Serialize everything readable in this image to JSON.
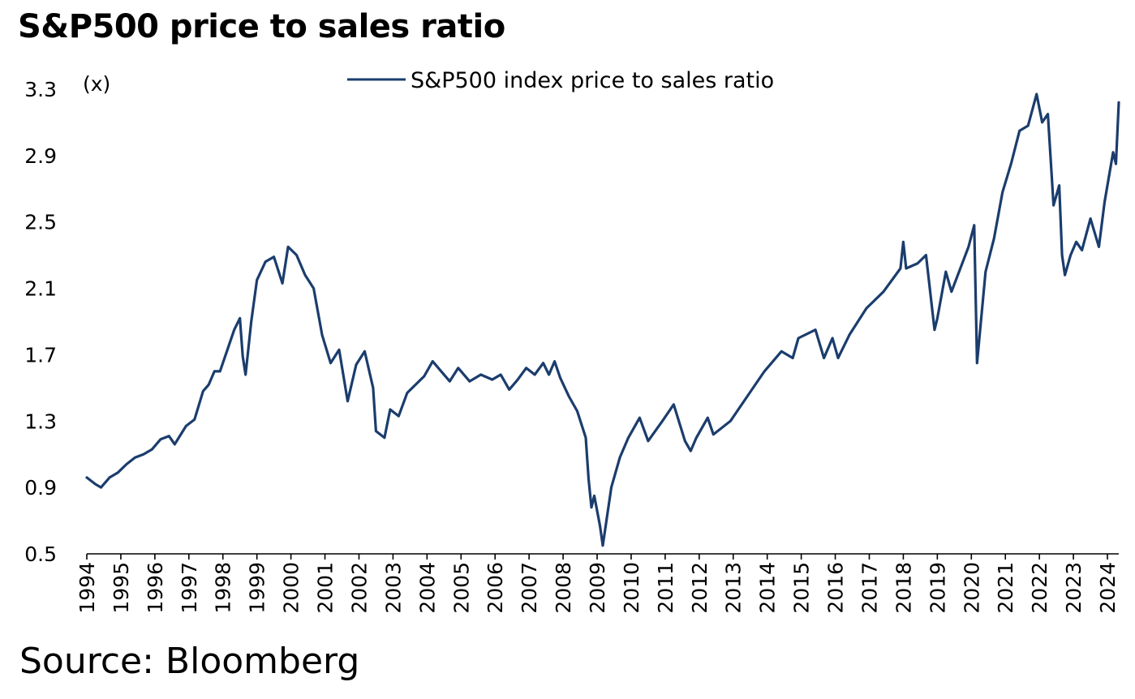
{
  "chart_data": {
    "type": "line",
    "title": "S&P500 price to sales ratio",
    "source": "Source: Bloomberg",
    "ylabel": "(x)",
    "xlabel": "",
    "ylim": [
      0.5,
      3.3
    ],
    "yticks": [
      "0.5",
      "0.9",
      "1.3",
      "1.7",
      "2.1",
      "2.5",
      "2.9",
      "3.3"
    ],
    "xlim": [
      "1994-01-01",
      "2024-05-01"
    ],
    "xticks": [
      "1994",
      "1995",
      "1996",
      "1997",
      "1998",
      "1999",
      "2000",
      "2001",
      "2002",
      "2003",
      "2004",
      "2005",
      "2006",
      "2007",
      "2008",
      "2009",
      "2010",
      "2011",
      "2012",
      "2013",
      "2014",
      "2015",
      "2016",
      "2017",
      "2018",
      "2019",
      "2020",
      "2021",
      "2022",
      "2023",
      "2024"
    ],
    "grid": false,
    "legend_position": "top-center",
    "line_color": "#1b3d6d",
    "series": [
      {
        "name": "S&P500 index price to sales ratio",
        "points": [
          [
            "1994-01",
            0.96
          ],
          [
            "1994-04",
            0.92
          ],
          [
            "1994-06",
            0.9
          ],
          [
            "1994-09",
            0.96
          ],
          [
            "1994-12",
            0.99
          ],
          [
            "1995-03",
            1.04
          ],
          [
            "1995-06",
            1.08
          ],
          [
            "1995-09",
            1.1
          ],
          [
            "1995-12",
            1.13
          ],
          [
            "1996-03",
            1.19
          ],
          [
            "1996-06",
            1.21
          ],
          [
            "1996-08",
            1.16
          ],
          [
            "1996-12",
            1.27
          ],
          [
            "1997-03",
            1.31
          ],
          [
            "1997-06",
            1.48
          ],
          [
            "1997-08",
            1.52
          ],
          [
            "1997-10",
            1.6
          ],
          [
            "1997-12",
            1.6
          ],
          [
            "1998-03",
            1.75
          ],
          [
            "1998-05",
            1.85
          ],
          [
            "1998-07",
            1.92
          ],
          [
            "1998-08",
            1.69
          ],
          [
            "1998-09",
            1.58
          ],
          [
            "1998-11",
            1.9
          ],
          [
            "1999-01",
            2.15
          ],
          [
            "1999-04",
            2.26
          ],
          [
            "1999-07",
            2.29
          ],
          [
            "1999-10",
            2.13
          ],
          [
            "1999-12",
            2.35
          ],
          [
            "2000-03",
            2.3
          ],
          [
            "2000-06",
            2.18
          ],
          [
            "2000-09",
            2.1
          ],
          [
            "2000-12",
            1.82
          ],
          [
            "2001-03",
            1.65
          ],
          [
            "2001-06",
            1.73
          ],
          [
            "2001-09",
            1.42
          ],
          [
            "2001-12",
            1.64
          ],
          [
            "2002-03",
            1.72
          ],
          [
            "2002-06",
            1.5
          ],
          [
            "2002-07",
            1.24
          ],
          [
            "2002-10",
            1.2
          ],
          [
            "2002-12",
            1.37
          ],
          [
            "2003-03",
            1.33
          ],
          [
            "2003-06",
            1.47
          ],
          [
            "2003-12",
            1.57
          ],
          [
            "2004-03",
            1.66
          ],
          [
            "2004-06",
            1.6
          ],
          [
            "2004-09",
            1.54
          ],
          [
            "2004-12",
            1.62
          ],
          [
            "2005-04",
            1.54
          ],
          [
            "2005-08",
            1.58
          ],
          [
            "2005-12",
            1.55
          ],
          [
            "2006-03",
            1.58
          ],
          [
            "2006-06",
            1.49
          ],
          [
            "2006-09",
            1.55
          ],
          [
            "2006-12",
            1.62
          ],
          [
            "2007-03",
            1.58
          ],
          [
            "2007-06",
            1.65
          ],
          [
            "2007-08",
            1.58
          ],
          [
            "2007-10",
            1.66
          ],
          [
            "2007-12",
            1.56
          ],
          [
            "2008-03",
            1.45
          ],
          [
            "2008-06",
            1.36
          ],
          [
            "2008-09",
            1.2
          ],
          [
            "2008-10",
            0.95
          ],
          [
            "2008-11",
            0.78
          ],
          [
            "2008-12",
            0.85
          ],
          [
            "2009-02",
            0.67
          ],
          [
            "2009-03",
            0.55
          ],
          [
            "2009-06",
            0.9
          ],
          [
            "2009-09",
            1.08
          ],
          [
            "2009-12",
            1.2
          ],
          [
            "2010-04",
            1.32
          ],
          [
            "2010-07",
            1.18
          ],
          [
            "2010-12",
            1.3
          ],
          [
            "2011-04",
            1.4
          ],
          [
            "2011-08",
            1.18
          ],
          [
            "2011-10",
            1.12
          ],
          [
            "2011-12",
            1.2
          ],
          [
            "2012-04",
            1.32
          ],
          [
            "2012-06",
            1.22
          ],
          [
            "2012-12",
            1.3
          ],
          [
            "2013-06",
            1.45
          ],
          [
            "2013-12",
            1.6
          ],
          [
            "2014-06",
            1.72
          ],
          [
            "2014-10",
            1.68
          ],
          [
            "2014-12",
            1.8
          ],
          [
            "2015-06",
            1.85
          ],
          [
            "2015-09",
            1.68
          ],
          [
            "2015-12",
            1.8
          ],
          [
            "2016-02",
            1.68
          ],
          [
            "2016-06",
            1.82
          ],
          [
            "2016-12",
            1.98
          ],
          [
            "2017-06",
            2.08
          ],
          [
            "2017-12",
            2.22
          ],
          [
            "2018-01",
            2.38
          ],
          [
            "2018-02",
            2.22
          ],
          [
            "2018-06",
            2.25
          ],
          [
            "2018-09",
            2.3
          ],
          [
            "2018-12",
            1.85
          ],
          [
            "2019-01",
            1.92
          ],
          [
            "2019-04",
            2.2
          ],
          [
            "2019-06",
            2.08
          ],
          [
            "2019-12",
            2.35
          ],
          [
            "2020-02",
            2.48
          ],
          [
            "2020-03",
            1.65
          ],
          [
            "2020-06",
            2.2
          ],
          [
            "2020-09",
            2.4
          ],
          [
            "2020-12",
            2.68
          ],
          [
            "2021-03",
            2.85
          ],
          [
            "2021-06",
            3.05
          ],
          [
            "2021-09",
            3.08
          ],
          [
            "2021-12",
            3.27
          ],
          [
            "2022-02",
            3.1
          ],
          [
            "2022-04",
            3.15
          ],
          [
            "2022-06",
            2.6
          ],
          [
            "2022-08",
            2.72
          ],
          [
            "2022-09",
            2.3
          ],
          [
            "2022-10",
            2.18
          ],
          [
            "2022-12",
            2.3
          ],
          [
            "2023-02",
            2.38
          ],
          [
            "2023-04",
            2.33
          ],
          [
            "2023-07",
            2.52
          ],
          [
            "2023-10",
            2.35
          ],
          [
            "2023-12",
            2.62
          ],
          [
            "2024-03",
            2.92
          ],
          [
            "2024-04",
            2.85
          ],
          [
            "2024-05",
            3.22
          ]
        ]
      }
    ]
  }
}
